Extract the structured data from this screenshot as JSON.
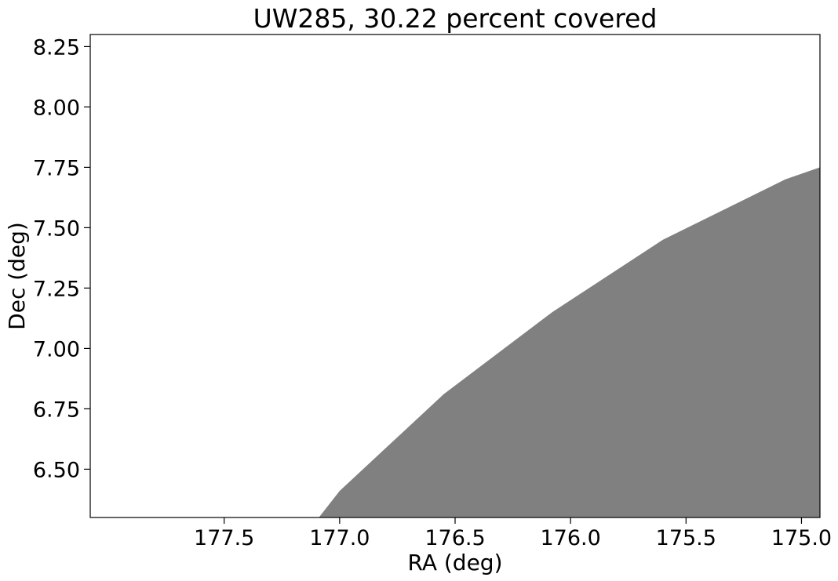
{
  "chart_data": {
    "type": "area",
    "title": "UW285, 30.22 percent covered",
    "xlabel": "RA (deg)",
    "ylabel": "Dec (deg)",
    "xlim": [
      178.08,
      174.92
    ],
    "ylim": [
      6.3,
      8.3
    ],
    "x_inverted": true,
    "grid": false,
    "xticks": [
      177.5,
      177.0,
      176.5,
      176.0,
      175.5,
      175.0
    ],
    "xtick_labels": [
      "177.5",
      "177.0",
      "176.5",
      "176.0",
      "175.5",
      "175.0"
    ],
    "yticks": [
      6.5,
      6.75,
      7.0,
      7.25,
      7.5,
      7.75,
      8.0,
      8.25
    ],
    "ytick_labels": [
      "6.50",
      "6.75",
      "7.00",
      "7.25",
      "7.50",
      "7.75",
      "8.00",
      "8.25"
    ],
    "fill_color": "#808080",
    "polygon": [
      {
        "x": 177.09,
        "y": 6.3
      },
      {
        "x": 177.0,
        "y": 6.41
      },
      {
        "x": 176.55,
        "y": 6.81
      },
      {
        "x": 176.08,
        "y": 7.15
      },
      {
        "x": 175.6,
        "y": 7.45
      },
      {
        "x": 175.07,
        "y": 7.7
      },
      {
        "x": 174.92,
        "y": 7.75
      },
      {
        "x": 174.92,
        "y": 6.3
      }
    ]
  }
}
